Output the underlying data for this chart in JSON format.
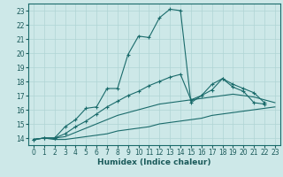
{
  "xlabel": "Humidex (Indice chaleur)",
  "xlim": [
    -0.5,
    23.5
  ],
  "ylim": [
    13.5,
    23.5
  ],
  "xticks": [
    0,
    1,
    2,
    3,
    4,
    5,
    6,
    7,
    8,
    9,
    10,
    11,
    12,
    13,
    14,
    15,
    16,
    17,
    18,
    19,
    20,
    21,
    22,
    23
  ],
  "yticks": [
    14,
    15,
    16,
    17,
    18,
    19,
    20,
    21,
    22,
    23
  ],
  "bg_color": "#cde8e8",
  "line_color": "#1a6b6b",
  "grid_color": "#b0d4d4",
  "line1_x": [
    0,
    1,
    2,
    3,
    4,
    5,
    6,
    7,
    8,
    9,
    10,
    11,
    12,
    13,
    14,
    15,
    16,
    17,
    18,
    19,
    20,
    21,
    22
  ],
  "line1_y": [
    13.9,
    14.0,
    14.0,
    14.8,
    15.3,
    16.1,
    16.2,
    17.5,
    17.5,
    19.9,
    21.2,
    21.1,
    22.5,
    23.1,
    23.0,
    16.5,
    17.0,
    17.8,
    18.2,
    17.6,
    17.3,
    16.5,
    16.4
  ],
  "line2_x": [
    0,
    1,
    2,
    3,
    4,
    5,
    6,
    7,
    8,
    9,
    10,
    11,
    12,
    13,
    14,
    15,
    16,
    17,
    18,
    19,
    20,
    21,
    22
  ],
  "line2_y": [
    13.9,
    14.0,
    14.0,
    14.3,
    14.8,
    15.2,
    15.7,
    16.2,
    16.6,
    17.0,
    17.3,
    17.7,
    18.0,
    18.3,
    18.5,
    16.7,
    17.0,
    17.4,
    18.2,
    17.8,
    17.5,
    17.2,
    16.5
  ],
  "line3_x": [
    0,
    1,
    2,
    3,
    4,
    5,
    6,
    7,
    8,
    9,
    10,
    11,
    12,
    13,
    14,
    15,
    16,
    17,
    18,
    19,
    20,
    21,
    22,
    23
  ],
  "line3_y": [
    13.9,
    14.0,
    14.0,
    14.1,
    14.4,
    14.7,
    15.0,
    15.3,
    15.6,
    15.8,
    16.0,
    16.2,
    16.4,
    16.5,
    16.6,
    16.7,
    16.8,
    16.9,
    17.0,
    17.1,
    17.0,
    16.9,
    16.7,
    16.5
  ],
  "line4_x": [
    0,
    1,
    2,
    3,
    4,
    5,
    6,
    7,
    8,
    9,
    10,
    11,
    12,
    13,
    14,
    15,
    16,
    17,
    18,
    19,
    20,
    21,
    22,
    23
  ],
  "line4_y": [
    13.9,
    14.0,
    13.9,
    13.9,
    14.0,
    14.1,
    14.2,
    14.3,
    14.5,
    14.6,
    14.7,
    14.8,
    15.0,
    15.1,
    15.2,
    15.3,
    15.4,
    15.6,
    15.7,
    15.8,
    15.9,
    16.0,
    16.1,
    16.2
  ]
}
